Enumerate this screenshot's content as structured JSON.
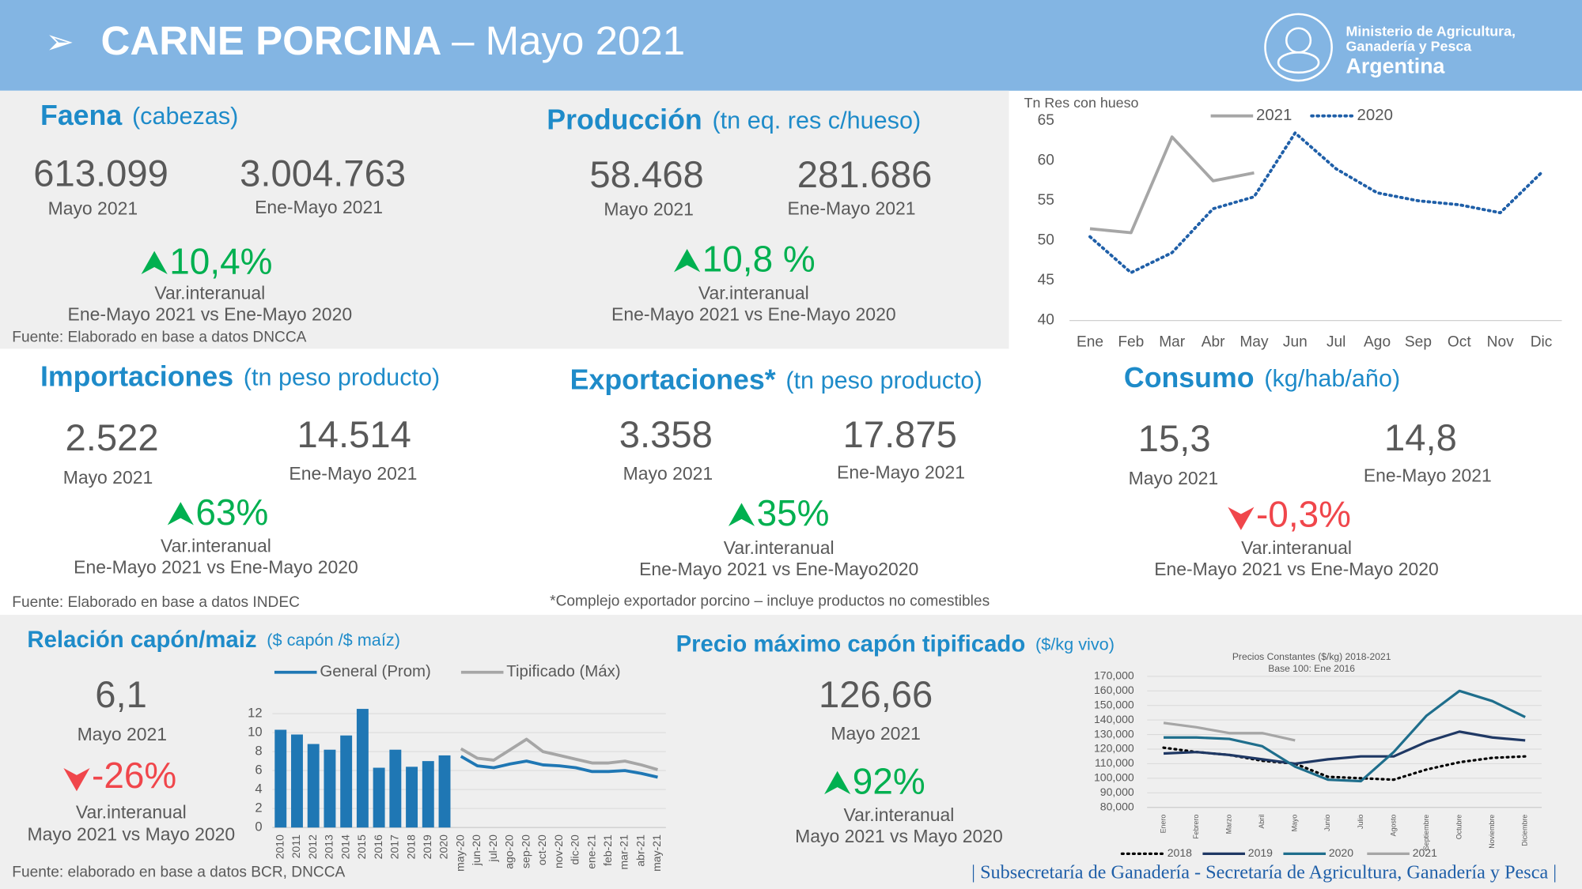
{
  "header": {
    "title": "CARNE PORCINA",
    "subtitle": "– Mayo 2021",
    "org": [
      "Ministerio de Agricultura,",
      "Ganadería y Pesca",
      "Argentina"
    ]
  },
  "panels": [
    {
      "title": "Faena",
      "unit": "(cabezas)",
      "figures": [
        {
          "value": "613.099",
          "period": "Mayo 2021"
        },
        {
          "value": "3.004.763",
          "period": "Ene-Mayo 2021"
        }
      ],
      "change": "10,4%",
      "direction": "up",
      "change_label": "Var.interanual",
      "comparison": "Ene-Mayo 2021 vs Ene-Mayo 2020",
      "note": "Fuente: Elaborado en base a datos DNCCA"
    },
    {
      "title": "Producción",
      "unit": "(tn eq. res c/hueso)",
      "figures": [
        {
          "value": "58.468",
          "period": "Mayo 2021"
        },
        {
          "value": "281.686",
          "period": "Ene-Mayo 2021"
        }
      ],
      "change": "10,8 %",
      "direction": "up",
      "change_label": "Var.interanual",
      "comparison": "Ene-Mayo 2021 vs Ene-Mayo 2020"
    },
    {
      "title": "Importaciones",
      "unit": "(tn peso producto)",
      "figures": [
        {
          "value": "2.522",
          "period": "Mayo 2021"
        },
        {
          "value": "14.514",
          "period": "Ene-Mayo 2021"
        }
      ],
      "change": "63%",
      "direction": "up",
      "change_label": "Var.interanual",
      "comparison": "Ene-Mayo 2021 vs Ene-Mayo 2020",
      "note": "Fuente: Elaborado en base a datos INDEC"
    },
    {
      "title": "Exportaciones*",
      "unit": "(tn peso producto)",
      "figures": [
        {
          "value": "3.358",
          "period": "Mayo 2021"
        },
        {
          "value": "17.875",
          "period": "Ene-Mayo 2021"
        }
      ],
      "change": "35%",
      "direction": "up",
      "change_label": "Var.interanual",
      "comparison": "Ene-Mayo 2021 vs Ene-Mayo2020",
      "note": "*Complejo exportador porcino – incluye productos no comestibles"
    },
    {
      "title": "Consumo",
      "unit": "(kg/hab/año)",
      "figures": [
        {
          "value": "15,3",
          "period": "Mayo 2021"
        },
        {
          "value": "14,8",
          "period": "Ene-Mayo 2021"
        }
      ],
      "change": "-0,3%",
      "direction": "down",
      "change_label": "Var.interanual",
      "comparison": "Ene-Mayo 2021 vs Ene-Mayo 2020"
    },
    {
      "title": "Relación capón/maiz",
      "unit": "($ capón /$ maíz)",
      "figures": [
        {
          "value": "6,1",
          "period": "Mayo 2021"
        }
      ],
      "change": "-26%",
      "direction": "down",
      "change_label": "Var.interanual",
      "comparison": "Mayo 2021 vs Mayo 2020",
      "note": "Fuente: elaborado en base a datos BCR, DNCCA"
    },
    {
      "title": "Precio máximo capón tipificado",
      "unit": "($/kg vivo)",
      "figures": [
        {
          "value": "126,66",
          "period": "Mayo 2021"
        }
      ],
      "change": "92%",
      "direction": "up",
      "change_label": "Var.interanual",
      "comparison": "Mayo 2021 vs Mayo 2020"
    }
  ],
  "footer": "| Subsecretaría de Ganadería - Secretaría de Agricultura, Ganadería y Pesca |",
  "chart_data": [
    {
      "type": "line",
      "y_label": "Tn Res con hueso",
      "categories": [
        "Ene",
        "Feb",
        "Mar",
        "Abr",
        "May",
        "Jun",
        "Jul",
        "Ago",
        "Sep",
        "Oct",
        "Nov",
        "Dic"
      ],
      "ylim": [
        40,
        65
      ],
      "yticks": [
        40,
        45,
        50,
        55,
        60,
        65
      ],
      "grid": false,
      "series": [
        {
          "name": "2021",
          "color": "#a6a6a6",
          "values": [
            51.5,
            51,
            63,
            57.5,
            58.5,
            null,
            null,
            null,
            null,
            null,
            null,
            null
          ]
        },
        {
          "name": "2020",
          "color": "#1f5fa8",
          "dash": "dotted",
          "values": [
            50.5,
            46,
            48.5,
            54,
            55.5,
            63.5,
            59,
            56,
            55,
            54.5,
            53.5,
            58.5
          ]
        }
      ]
    },
    {
      "type": "bar",
      "categories": [
        "2010",
        "2011",
        "2012",
        "2013",
        "2014",
        "2015",
        "2016",
        "2017",
        "2018",
        "2019",
        "2020",
        "may-20",
        "jun-20",
        "jul-20",
        "ago-20",
        "sep-20",
        "oct-20",
        "nov-20",
        "dic-20",
        "ene-21",
        "feb-21",
        "mar-21",
        "abr-21",
        "may-21"
      ],
      "ylim": [
        0,
        13
      ],
      "yticks": [
        0,
        2,
        4,
        6,
        8,
        10,
        12
      ],
      "grid": true,
      "series": [
        {
          "color": "#1f77b4",
          "values": [
            10.3,
            9.8,
            8.8,
            8.2,
            9.7,
            12.5,
            6.3,
            8.2,
            6.4,
            7.0,
            7.6,
            null,
            null,
            null,
            null,
            null,
            null,
            null,
            null,
            null,
            null,
            null,
            null,
            null
          ]
        },
        {
          "name": "General (Prom)",
          "type": "line",
          "color": "#1f77b4",
          "values": [
            null,
            null,
            null,
            null,
            null,
            null,
            null,
            null,
            null,
            null,
            null,
            7.5,
            6.5,
            6.3,
            6.7,
            7.0,
            6.6,
            6.5,
            6.3,
            5.9,
            5.9,
            6.0,
            5.7,
            5.3
          ]
        },
        {
          "name": "Tipificado (Máx)",
          "type": "line",
          "color": "#a6a6a6",
          "values": [
            null,
            null,
            null,
            null,
            null,
            null,
            null,
            null,
            null,
            null,
            null,
            8.3,
            7.3,
            7.1,
            8.2,
            9.3,
            8.0,
            7.6,
            7.2,
            6.8,
            6.8,
            7.0,
            6.6,
            6.1
          ]
        }
      ]
    },
    {
      "type": "line",
      "title": "Precios Constantes ($/kg) 2018-2021",
      "subtitle": "Base 100: Ene 2016",
      "categories": [
        "Enero",
        "Febrero",
        "Marzo",
        "Abril",
        "Mayo",
        "Junio",
        "Julio",
        "Agosto",
        "Septiembre",
        "Octubre",
        "Noviembre",
        "Diciembre"
      ],
      "ylim": [
        80000,
        170000
      ],
      "yticks": [
        {
          "value": 80000,
          "label": "80,000"
        },
        {
          "value": 90000,
          "label": "90,000"
        },
        {
          "value": 100000,
          "label": "100,000"
        },
        {
          "value": 110000,
          "label": "110,000"
        },
        {
          "value": 120000,
          "label": "120,000"
        },
        {
          "value": 130000,
          "label": "130,000"
        },
        {
          "value": 140000,
          "label": "140,000"
        },
        {
          "value": 150000,
          "label": "150,000"
        },
        {
          "value": 160000,
          "label": "160,000"
        },
        {
          "value": 170000,
          "label": "170,000"
        }
      ],
      "grid": true,
      "series": [
        {
          "name": "2018",
          "color": "#000000",
          "dash": "dotted",
          "values": [
            121000,
            118000,
            116000,
            112000,
            110000,
            101000,
            100000,
            99000,
            106000,
            111000,
            114000,
            115000
          ]
        },
        {
          "name": "2019",
          "color": "#1f3864",
          "values": [
            117000,
            118000,
            116000,
            113000,
            110000,
            113000,
            115000,
            115000,
            125000,
            132000,
            128000,
            126000
          ]
        },
        {
          "name": "2020",
          "color": "#1f6e8c",
          "values": [
            128000,
            128000,
            127000,
            122000,
            108000,
            99000,
            98000,
            118000,
            143000,
            160000,
            153000,
            142000
          ]
        },
        {
          "name": "2021",
          "color": "#a6a6a6",
          "values": [
            138000,
            135000,
            131000,
            131000,
            126000,
            null,
            null,
            null,
            null,
            null,
            null,
            null
          ]
        }
      ]
    }
  ]
}
